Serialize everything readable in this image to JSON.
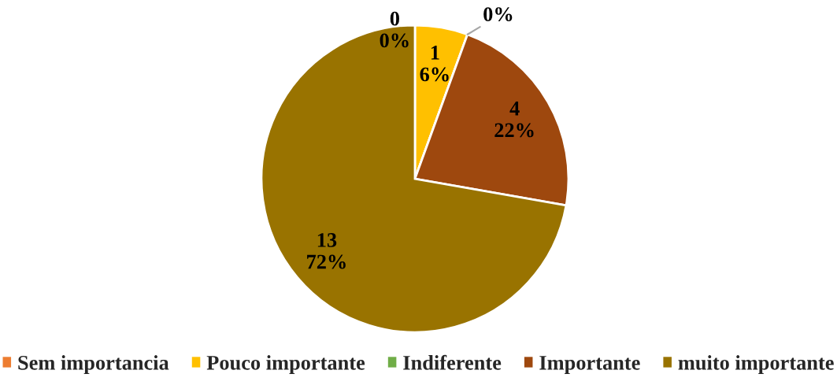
{
  "chart_data": {
    "type": "pie",
    "categories": [
      "Sem importancia",
      "Pouco importante",
      "Indiferente",
      "Importante",
      "muito importante"
    ],
    "values": [
      0,
      1,
      0,
      4,
      13
    ],
    "colors": [
      "#ed7d31",
      "#ffc000",
      "#70ad47",
      "#9e480e",
      "#997300"
    ],
    "value_labels": [
      "0\n0%",
      "1\n6%",
      "0%",
      "4\n22%",
      "13\n72%"
    ],
    "legend": "bottom"
  }
}
